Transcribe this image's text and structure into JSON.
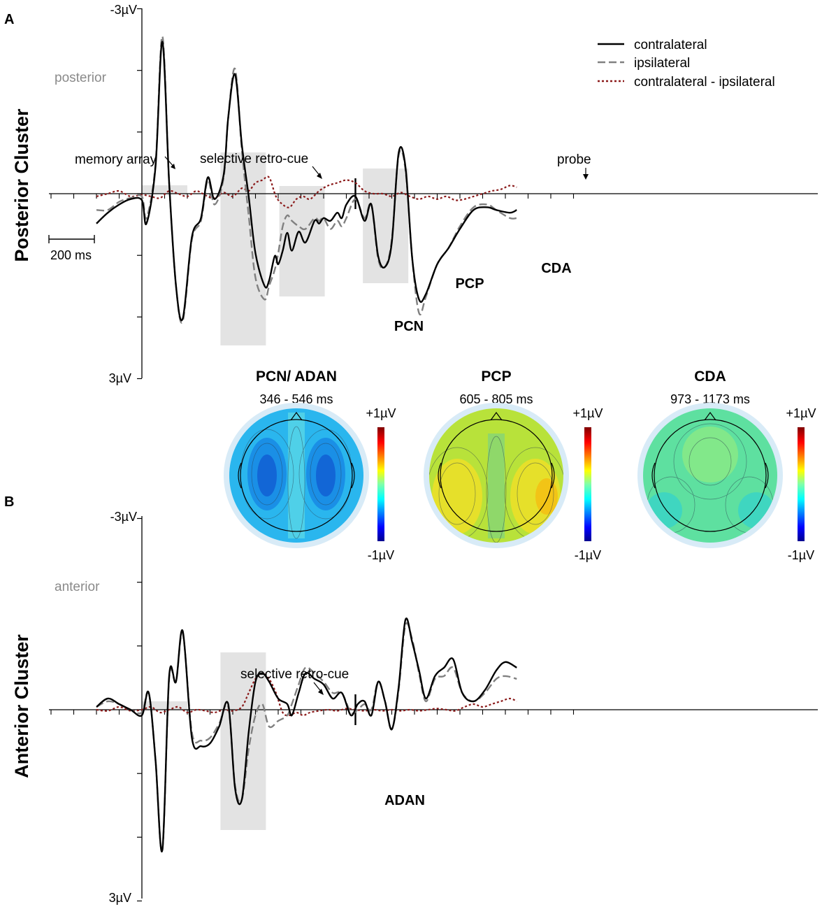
{
  "colors": {
    "contralateral": "#000000",
    "ipsilateral": "#808080",
    "difference": "#8b1a1a",
    "shade": "#e3e3e3",
    "region_text": "#8a8a8a"
  },
  "panels": [
    {
      "letter": "A",
      "side_title": "Posterior Cluster",
      "region": "posterior",
      "y_top_label": "-3µV",
      "y_bottom_label": "3µV"
    },
    {
      "letter": "B",
      "side_title": "Anterior Cluster",
      "region": "anterior",
      "y_top_label": "-3µV",
      "y_bottom_label": "3µV"
    }
  ],
  "legend": {
    "items": [
      {
        "label": "contralateral",
        "style": "solid",
        "color": "#000000"
      },
      {
        "label": "ipsilateral",
        "style": "dashed",
        "color": "#808080"
      },
      {
        "label": "contralateral - ipsilateral",
        "style": "dotted",
        "color": "#8b1a1a"
      }
    ]
  },
  "annotations": {
    "memory_array": "memory array",
    "retro_cue": "selective retro-cue",
    "probe": "probe",
    "scale_bar": "200 ms"
  },
  "components": {
    "pcn": "PCN",
    "pcp": "PCP",
    "cda": "CDA",
    "adan": "ADAN"
  },
  "topomaps": [
    {
      "title": "PCN/ ADAN",
      "range": "346 - 546 ms",
      "max_label": "+1µV",
      "min_label": "-1µV",
      "mean_level": 0.3
    },
    {
      "title": "PCP",
      "range": "605 - 805 ms",
      "max_label": "+1µV",
      "min_label": "-1µV",
      "mean_level": 0.62
    },
    {
      "title": "CDA",
      "range": "973 - 1173 ms",
      "max_label": "+1µV",
      "min_label": "-1µV",
      "mean_level": 0.45
    }
  ],
  "chart_data": [
    {
      "type": "line",
      "panel": "A",
      "x_unit": "ms",
      "y_unit": "µV",
      "ylim": [
        -3,
        3
      ],
      "y_inverted": true,
      "xlim": [
        -200,
        1650
      ],
      "event_times_ms": {
        "memory_array": 0,
        "retro_cue": 420,
        "probe": 940
      },
      "shaded_windows_ms": [
        {
          "label": "PCN",
          "range": [
            346,
            546
          ]
        },
        {
          "label": "PCP",
          "range": [
            605,
            805
          ]
        },
        {
          "label": "CDA",
          "range": [
            973,
            1173
          ]
        }
      ],
      "series": [
        {
          "name": "contralateral",
          "x": [
            -200,
            -150,
            -100,
            -50,
            0,
            20,
            60,
            90,
            120,
            150,
            180,
            220,
            260,
            290,
            320,
            360,
            380,
            410,
            440,
            470,
            500,
            540,
            560,
            585,
            600,
            620,
            640,
            660,
            690,
            720,
            760,
            780,
            800,
            830,
            860,
            880,
            900,
            940,
            980,
            1010,
            1040,
            1070,
            1100,
            1130,
            1160,
            1190,
            1220,
            1250,
            1300,
            1350,
            1400,
            1460,
            1520,
            1560,
            1620,
            1650
          ],
          "y": [
            0.55,
            0.35,
            0.2,
            0.1,
            0.12,
            0.55,
            -0.5,
            -2.8,
            -0.2,
            1.7,
            2.3,
            0.8,
            0.45,
            -0.3,
            0.1,
            -0.35,
            -1.4,
            -2.2,
            -0.9,
            0.05,
            1.1,
            1.7,
            1.6,
            1.15,
            1.3,
            1.05,
            0.72,
            1.05,
            0.7,
            0.9,
            0.5,
            0.55,
            0.45,
            0.5,
            0.35,
            0.45,
            0.2,
            0.05,
            0.5,
            0.2,
            1.15,
            1.35,
            0.9,
            -0.75,
            -0.5,
            1.2,
            1.95,
            1.85,
            1.3,
            1.0,
            0.65,
            0.3,
            0.25,
            0.3,
            0.35,
            0.3
          ]
        },
        {
          "name": "ipsilateral",
          "x": [
            -200,
            -150,
            -100,
            -50,
            0,
            20,
            60,
            90,
            120,
            150,
            180,
            220,
            260,
            290,
            320,
            360,
            380,
            410,
            440,
            470,
            500,
            540,
            560,
            585,
            600,
            620,
            640,
            660,
            690,
            720,
            760,
            780,
            800,
            830,
            860,
            880,
            900,
            940,
            980,
            1010,
            1040,
            1070,
            1100,
            1130,
            1160,
            1190,
            1220,
            1250,
            1300,
            1350,
            1400,
            1460,
            1520,
            1560,
            1620,
            1650
          ],
          "y": [
            0.3,
            0.3,
            0.15,
            0.08,
            0.05,
            0.45,
            -0.55,
            -2.9,
            -0.2,
            1.7,
            2.35,
            0.85,
            0.5,
            -0.25,
            0.2,
            -0.3,
            -1.4,
            -2.3,
            -0.8,
            0.4,
            1.55,
            1.95,
            1.7,
            1.4,
            1.1,
            0.6,
            0.4,
            0.5,
            0.6,
            0.65,
            0.45,
            0.5,
            0.45,
            0.65,
            0.5,
            0.6,
            0.45,
            0.1,
            0.45,
            0.2,
            1.2,
            1.35,
            0.85,
            -0.7,
            -0.45,
            1.2,
            2.2,
            1.9,
            1.3,
            1.0,
            0.6,
            0.25,
            0.2,
            0.3,
            0.45,
            0.45
          ]
        },
        {
          "name": "contralateral - ipsilateral",
          "x": [
            -200,
            -150,
            -100,
            -50,
            0,
            40,
            80,
            120,
            160,
            200,
            240,
            280,
            320,
            360,
            400,
            440,
            470,
            500,
            530,
            560,
            590,
            620,
            650,
            680,
            710,
            740,
            780,
            820,
            860,
            900,
            940,
            980,
            1020,
            1060,
            1100,
            1140,
            1180,
            1220,
            1260,
            1300,
            1340,
            1380,
            1420,
            1460,
            1500,
            1540,
            1580,
            1620,
            1650
          ],
          "y": [
            0.05,
            0.0,
            -0.05,
            0.05,
            0.02,
            0.05,
            0.08,
            -0.05,
            0.0,
            0.05,
            -0.05,
            0.03,
            0.08,
            -0.02,
            0.05,
            -0.1,
            -0.05,
            -0.2,
            -0.25,
            -0.3,
            0.05,
            0.2,
            0.25,
            0.1,
            0.05,
            0.1,
            -0.05,
            -0.15,
            -0.2,
            -0.25,
            -0.2,
            -0.05,
            0.0,
            0.0,
            0.05,
            -0.02,
            0.05,
            0.1,
            0.05,
            0.1,
            0.05,
            0.12,
            0.1,
            0.05,
            0.0,
            -0.05,
            -0.08,
            -0.15,
            -0.12
          ]
        }
      ]
    },
    {
      "type": "line",
      "panel": "B",
      "x_unit": "ms",
      "y_unit": "µV",
      "ylim": [
        -3,
        3
      ],
      "y_inverted": true,
      "xlim": [
        -200,
        1650
      ],
      "event_times_ms": {
        "memory_array": 0,
        "retro_cue": 420,
        "probe": 940
      },
      "shaded_windows_ms": [
        {
          "label": "ADAN",
          "range": [
            346,
            546
          ]
        }
      ],
      "series": [
        {
          "name": "contralateral",
          "x": [
            -200,
            -150,
            -100,
            -50,
            0,
            30,
            60,
            90,
            120,
            150,
            180,
            220,
            260,
            300,
            340,
            380,
            410,
            440,
            470,
            500,
            530,
            560,
            600,
            640,
            660,
            690,
            720,
            760,
            800,
            840,
            880,
            920,
            950,
            980,
            1010,
            1040,
            1070,
            1100,
            1130,
            1160,
            1190,
            1220,
            1250,
            1290,
            1330,
            1370,
            1410,
            1460,
            1510,
            1560,
            1600,
            1650
          ],
          "y": [
            -0.05,
            -0.2,
            -0.1,
            0.0,
            0.1,
            -0.3,
            0.9,
            2.5,
            -0.6,
            -0.5,
            -1.4,
            0.5,
            0.65,
            0.6,
            0.3,
            -0.1,
            1.4,
            1.6,
            0.4,
            -0.5,
            -0.65,
            -0.5,
            -0.2,
            -0.1,
            0.1,
            -0.3,
            -0.65,
            -0.55,
            -0.45,
            -0.2,
            -0.3,
            0.1,
            -0.1,
            -0.15,
            0.1,
            -0.5,
            -0.15,
            0.35,
            -0.4,
            -1.6,
            -1.2,
            -0.7,
            -0.2,
            -0.6,
            -0.75,
            -0.9,
            -0.3,
            -0.15,
            -0.35,
            -0.7,
            -0.85,
            -0.75
          ]
        },
        {
          "name": "ipsilateral",
          "x": [
            -200,
            -150,
            -100,
            -50,
            0,
            30,
            60,
            90,
            120,
            150,
            180,
            220,
            260,
            300,
            340,
            380,
            410,
            440,
            470,
            500,
            530,
            560,
            600,
            640,
            660,
            690,
            720,
            760,
            800,
            840,
            880,
            920,
            950,
            980,
            1010,
            1040,
            1070,
            1100,
            1130,
            1160,
            1190,
            1220,
            1250,
            1290,
            1330,
            1370,
            1410,
            1460,
            1510,
            1560,
            1600,
            1650
          ],
          "y": [
            -0.05,
            -0.15,
            -0.1,
            0.0,
            0.05,
            -0.3,
            0.9,
            2.5,
            -0.55,
            -0.5,
            -1.35,
            0.4,
            0.55,
            0.5,
            0.25,
            -0.05,
            1.35,
            1.6,
            0.7,
            0.1,
            -0.1,
            0.3,
            0.2,
            0.1,
            -0.1,
            -0.45,
            -0.75,
            -0.65,
            -0.5,
            -0.3,
            -0.3,
            0.05,
            0.0,
            -0.1,
            0.0,
            -0.5,
            -0.15,
            0.35,
            -0.35,
            -1.5,
            -1.25,
            -0.65,
            -0.15,
            -0.55,
            -0.6,
            -0.75,
            -0.3,
            -0.15,
            -0.3,
            -0.55,
            -0.6,
            -0.55
          ]
        },
        {
          "name": "contralateral - ipsilateral",
          "x": [
            -200,
            -150,
            -100,
            -50,
            0,
            40,
            80,
            120,
            160,
            200,
            240,
            280,
            320,
            360,
            400,
            440,
            470,
            500,
            530,
            560,
            590,
            620,
            650,
            680,
            710,
            740,
            780,
            820,
            860,
            900,
            940,
            980,
            1020,
            1060,
            1100,
            1140,
            1180,
            1220,
            1260,
            1300,
            1340,
            1380,
            1420,
            1460,
            1500,
            1540,
            1580,
            1620,
            1650
          ],
          "y": [
            0.0,
            0.02,
            -0.05,
            0.02,
            0.0,
            -0.05,
            0.05,
            0.0,
            -0.05,
            0.05,
            0.0,
            0.02,
            0.05,
            0.0,
            0.02,
            -0.05,
            -0.3,
            -0.55,
            -0.65,
            -0.55,
            -0.3,
            0.05,
            0.1,
            0.05,
            0.1,
            0.05,
            0.02,
            0.0,
            0.02,
            -0.02,
            0.0,
            0.02,
            0.0,
            0.02,
            0.0,
            0.02,
            0.0,
            0.02,
            0.0,
            -0.02,
            0.0,
            0.02,
            -0.05,
            -0.1,
            -0.05,
            -0.1,
            -0.15,
            -0.2,
            -0.15
          ]
        }
      ]
    }
  ]
}
